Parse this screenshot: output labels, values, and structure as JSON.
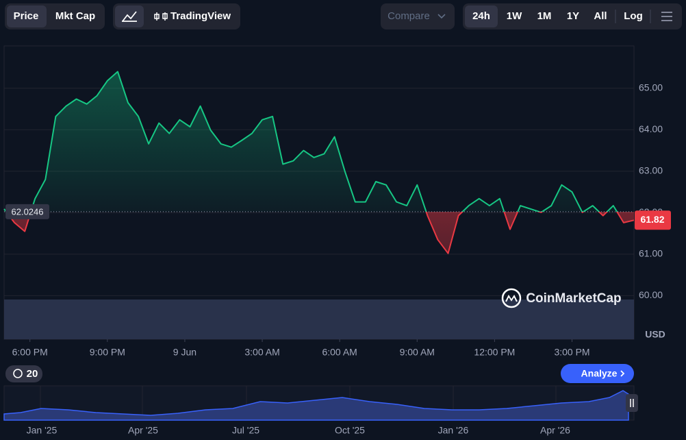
{
  "toolbar": {
    "view_tabs": [
      "Price",
      "Mkt Cap"
    ],
    "chart_tool": "TradingView",
    "compare": "Compare",
    "ranges": [
      "24h",
      "1W",
      "1M",
      "1Y",
      "All"
    ],
    "log": "Log",
    "history_count": 20,
    "analyze": "Analyze",
    "watermark": "CoinMarketCap"
  },
  "chart_data": {
    "type": "line",
    "y_axis_label": "USD",
    "reference_value": 62.0246,
    "up_color": "#16c784",
    "down_color": "#ea3943",
    "x": [
      17,
      17.4,
      17.8,
      18.2,
      18.6,
      19,
      19.4,
      19.8,
      20.2,
      20.6,
      21,
      21.4,
      21.8,
      22.2,
      22.6,
      23,
      23.4,
      23.8,
      24.2,
      24.6,
      25,
      25.4,
      25.8,
      26.2,
      26.6,
      27,
      27.4,
      27.8,
      28.2,
      28.6,
      29,
      29.4,
      29.8,
      30.2,
      30.6,
      31,
      31.4,
      31.8,
      32.2,
      32.6,
      33,
      33.4,
      33.8,
      34.2,
      34.6,
      35,
      35.4,
      35.8,
      36.2,
      36.6,
      37,
      37.4,
      37.8,
      38.2,
      38.6,
      39,
      39.4,
      39.8,
      40.2,
      40.6,
      41,
      41.4
    ],
    "series": [
      {
        "name": "Price",
        "values": [
          62.09,
          61.76,
          61.55,
          62.34,
          62.8,
          64.32,
          64.57,
          64.74,
          64.62,
          64.82,
          65.18,
          65.4,
          64.65,
          64.32,
          63.66,
          64.16,
          63.91,
          64.24,
          64.07,
          64.57,
          63.99,
          63.66,
          63.58,
          63.74,
          63.91,
          64.24,
          64.32,
          63.17,
          63.25,
          63.5,
          63.33,
          63.42,
          63.83,
          63.0,
          62.26,
          62.26,
          62.75,
          62.67,
          62.26,
          62.17,
          62.67,
          61.93,
          61.35,
          61.02,
          61.93,
          62.17,
          62.34,
          62.17,
          62.34,
          61.6,
          62.17,
          62.09,
          62.01,
          62.17,
          62.67,
          62.5,
          62.01,
          62.17,
          61.93,
          62.17,
          61.76,
          61.82
        ]
      }
    ],
    "xlim": [
      17,
      41.4
    ],
    "xticks": [
      {
        "value": 18,
        "label": "6:00 PM"
      },
      {
        "value": 21,
        "label": "9:00 PM"
      },
      {
        "value": 24,
        "label": "9 Jun"
      },
      {
        "value": 27,
        "label": "3:00 AM"
      },
      {
        "value": 30,
        "label": "6:00 AM"
      },
      {
        "value": 33,
        "label": "9:00 AM"
      },
      {
        "value": 36,
        "label": "12:00 PM"
      },
      {
        "value": 39,
        "label": "3:00 PM"
      }
    ],
    "ylim": [
      58.95,
      66.02
    ],
    "yticks": [
      {
        "value": 60,
        "label": "60.00"
      },
      {
        "value": 61,
        "label": "61.00"
      },
      {
        "value": 62,
        "label": "62.00"
      },
      {
        "value": 63,
        "label": "63.00"
      },
      {
        "value": 64,
        "label": "64.00"
      },
      {
        "value": 65,
        "label": "65.00"
      }
    ],
    "grid": true
  },
  "navigator": {
    "xtick_labels": [
      "Jan '25",
      "Apr '25",
      "Jul '25",
      "Oct '25",
      "Jan '26",
      "Apr '26"
    ]
  }
}
